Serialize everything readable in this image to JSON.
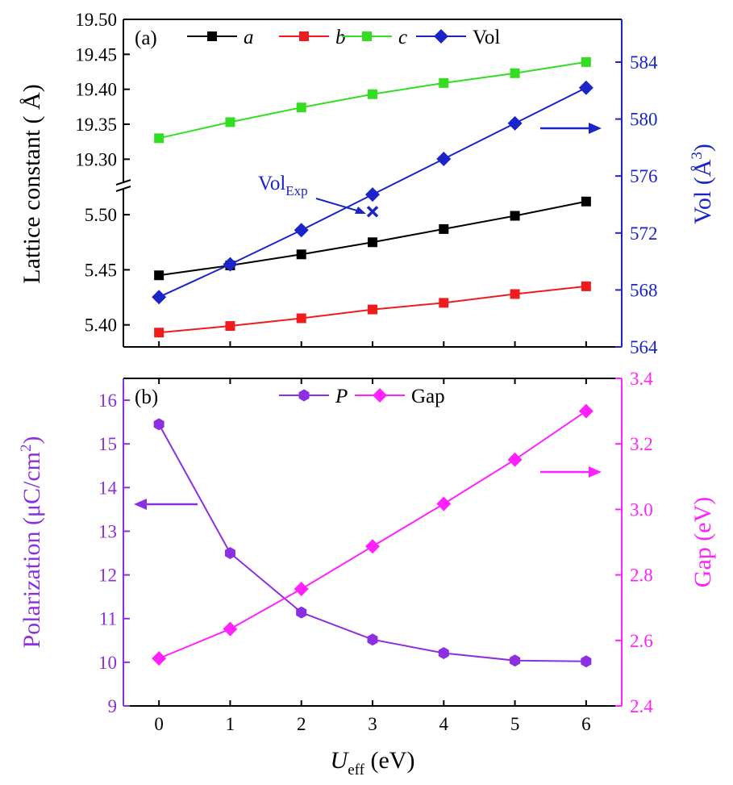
{
  "chart_data": [
    {
      "panel": "(a)",
      "type": "line",
      "x": [
        0,
        1,
        2,
        3,
        4,
        5,
        6
      ],
      "xlim": [
        -0.5,
        6.5
      ],
      "ylabel_left": "Lattice constant ( Å)",
      "ylabel_right": "Vol (Å",
      "ylabel_right_sup": "3",
      "ylabel_right_close": ")",
      "y_left_lower": {
        "range": [
          5.38,
          5.525
        ],
        "ticks": [
          "5.40",
          "5.45",
          "5.50"
        ],
        "tick_values": [
          5.4,
          5.45,
          5.5
        ]
      },
      "y_left_upper": {
        "range": [
          19.26,
          19.5
        ],
        "ticks": [
          "19.30",
          "19.35",
          "19.40",
          "19.45",
          "19.50"
        ],
        "tick_values": [
          19.3,
          19.35,
          19.4,
          19.45,
          19.5
        ]
      },
      "y_left_broken": true,
      "y_right": {
        "range": [
          564,
          587
        ],
        "ticks": [
          "564",
          "568",
          "572",
          "576",
          "580",
          "584"
        ],
        "tick_values": [
          564,
          568,
          572,
          576,
          580,
          584
        ]
      },
      "series": [
        {
          "name": "a",
          "italic": true,
          "color": "#000000",
          "marker": "square",
          "axis": "left",
          "values": [
            5.445,
            5.454,
            5.464,
            5.475,
            5.487,
            5.499,
            5.512
          ]
        },
        {
          "name": "b",
          "italic": true,
          "color": "#ee1c1c",
          "marker": "square",
          "axis": "left",
          "values": [
            5.393,
            5.399,
            5.406,
            5.414,
            5.42,
            5.428,
            5.435
          ]
        },
        {
          "name": "c",
          "italic": true,
          "color": "#33dd22",
          "marker": "square",
          "axis": "left",
          "values": [
            19.33,
            19.353,
            19.374,
            19.393,
            19.409,
            19.423,
            19.439
          ]
        },
        {
          "name": "Vol",
          "italic": false,
          "color": "#1a24c8",
          "marker": "diamond",
          "axis": "right",
          "values": [
            567.5,
            569.8,
            572.2,
            574.7,
            577.2,
            579.7,
            582.2
          ]
        }
      ],
      "experimental_point": {
        "label": "Vol",
        "label_sub": "Exp",
        "x": 3,
        "y": 573.5,
        "marker": "x",
        "axis": "right"
      },
      "arrow_direction": "right"
    },
    {
      "panel": "(b)",
      "type": "line",
      "x": [
        0,
        1,
        2,
        3,
        4,
        5,
        6
      ],
      "xlim": [
        -0.5,
        6.5
      ],
      "xticks": [
        "0",
        "1",
        "2",
        "3",
        "4",
        "5",
        "6"
      ],
      "xlabel": "U",
      "xlabel_sub": "eff",
      "xlabel_unit": "(eV)",
      "ylabel_left": "Polarization (μC/cm",
      "ylabel_left_sup": "2",
      "ylabel_left_close": ")",
      "ylabel_right": "Gap (eV)",
      "y_left": {
        "range": [
          9,
          16.5
        ],
        "ticks": [
          "9",
          "10",
          "11",
          "12",
          "13",
          "14",
          "15",
          "16"
        ],
        "tick_values": [
          9,
          10,
          11,
          12,
          13,
          14,
          15,
          16
        ]
      },
      "y_right": {
        "range": [
          2.4,
          3.4
        ],
        "ticks": [
          "2.4",
          "2.6",
          "2.8",
          "3.0",
          "3.2",
          "3.4"
        ],
        "tick_values": [
          2.4,
          2.6,
          2.8,
          3.0,
          3.2,
          3.4
        ]
      },
      "series": [
        {
          "name": "P",
          "italic": true,
          "color": "#8b2fe0",
          "marker": "hexagon",
          "axis": "left",
          "values": [
            15.45,
            12.5,
            11.14,
            10.52,
            10.21,
            10.04,
            10.02
          ]
        },
        {
          "name": "Gap",
          "italic": false,
          "color": "#ff22ff",
          "marker": "diamond",
          "axis": "right",
          "values": [
            2.545,
            2.635,
            2.757,
            2.887,
            3.017,
            3.152,
            3.3
          ]
        }
      ],
      "arrows": [
        "left",
        "right"
      ]
    }
  ]
}
